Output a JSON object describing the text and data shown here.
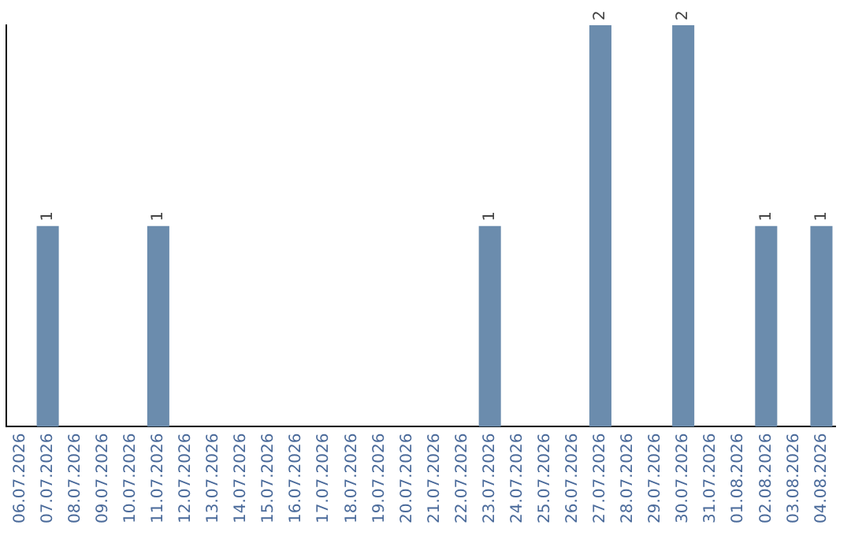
{
  "chart_data": {
    "type": "bar",
    "categories": [
      "06.07.2026",
      "07.07.2026",
      "08.07.2026",
      "09.07.2026",
      "10.07.2026",
      "11.07.2026",
      "12.07.2026",
      "13.07.2026",
      "14.07.2026",
      "15.07.2026",
      "16.07.2026",
      "17.07.2026",
      "18.07.2026",
      "19.07.2026",
      "20.07.2026",
      "21.07.2026",
      "22.07.2026",
      "23.07.2026",
      "24.07.2026",
      "25.07.2026",
      "26.07.2026",
      "27.07.2026",
      "28.07.2026",
      "29.07.2026",
      "30.07.2026",
      "31.07.2026",
      "01.08.2026",
      "02.08.2026",
      "03.08.2026",
      "04.08.2026"
    ],
    "values": [
      null,
      1,
      null,
      null,
      null,
      1,
      null,
      null,
      null,
      null,
      null,
      null,
      null,
      null,
      null,
      null,
      null,
      1,
      null,
      null,
      null,
      2,
      null,
      null,
      2,
      null,
      null,
      1,
      null,
      1
    ],
    "color": "#6b8cad",
    "ylim": [
      0,
      2
    ],
    "tick_labels": "x",
    "data_labels": true,
    "grid": false,
    "legend": false
  }
}
